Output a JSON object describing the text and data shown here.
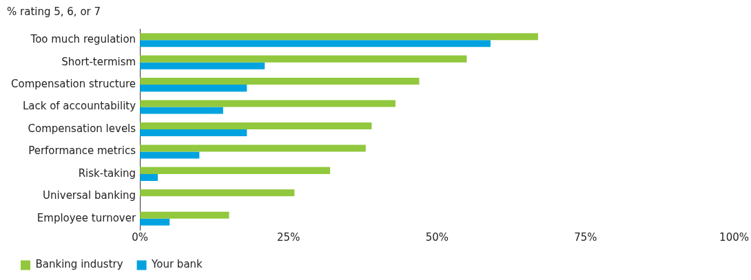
{
  "chart_data": {
    "type": "bar",
    "orientation": "horizontal",
    "title": "% rating 5, 6, or 7",
    "categories": [
      "Too much regulation",
      "Short-termism",
      "Compensation structure",
      "Lack of accountability",
      "Compensation levels",
      "Performance metrics",
      "Risk-taking",
      "Universal banking",
      "Employee turnover"
    ],
    "series": [
      {
        "name": "Banking industry",
        "color": "#92c83e",
        "values": [
          67,
          55,
          47,
          43,
          39,
          38,
          32,
          26,
          15
        ]
      },
      {
        "name": "Your bank",
        "color": "#00a3e0",
        "values": [
          59,
          21,
          18,
          14,
          18,
          10,
          3,
          0,
          5
        ]
      }
    ],
    "xlim": [
      0,
      100
    ],
    "xticks": [
      {
        "value": 0,
        "label": "0%"
      },
      {
        "value": 25,
        "label": "25%"
      },
      {
        "value": 50,
        "label": "50%"
      },
      {
        "value": 75,
        "label": "75%"
      },
      {
        "value": 100,
        "label": "100%"
      }
    ],
    "grid": false,
    "legend": "bottom left"
  }
}
